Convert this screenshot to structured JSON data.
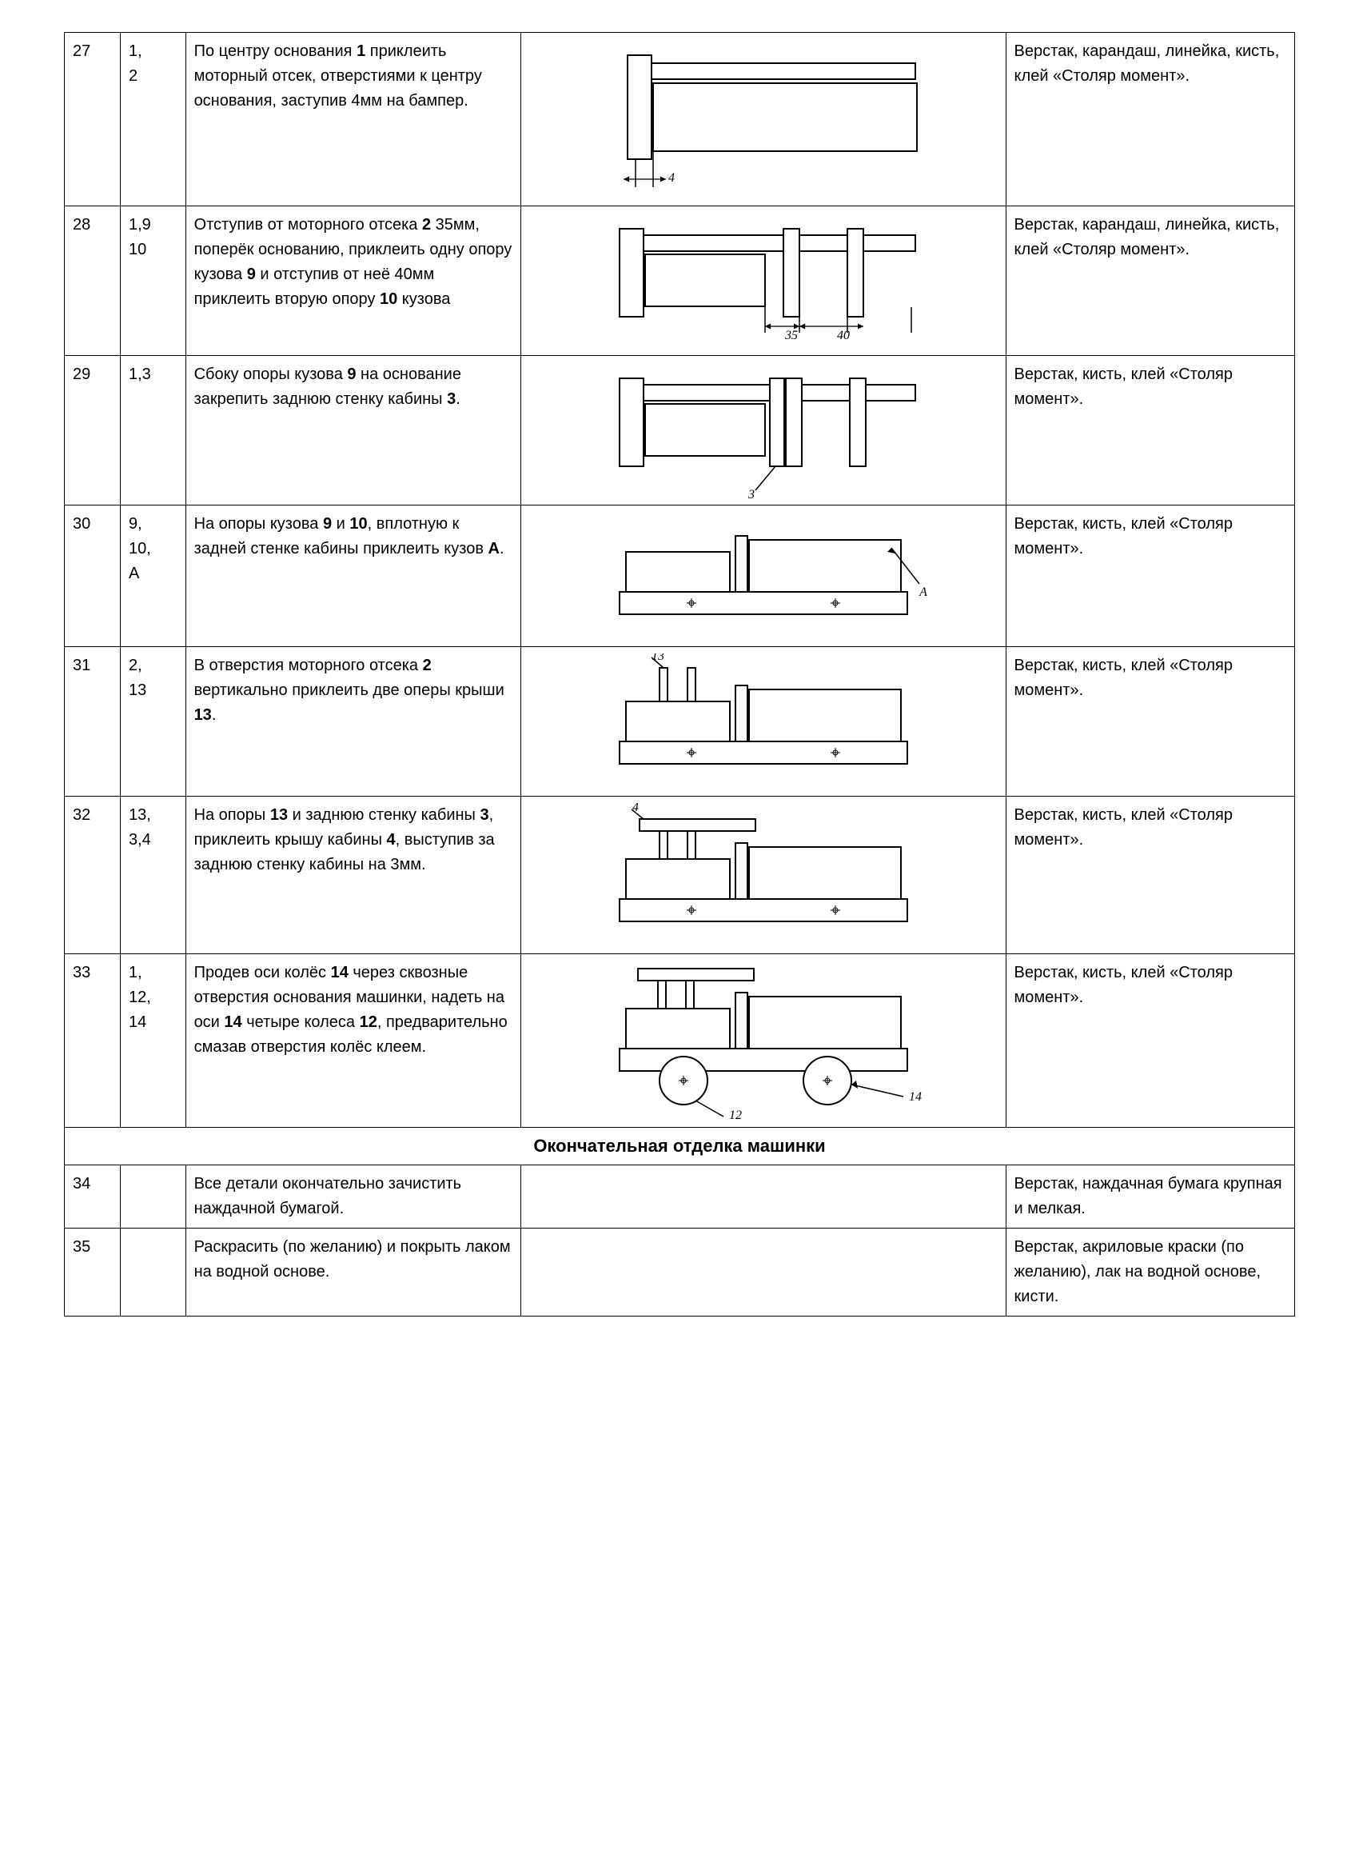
{
  "rows": [
    {
      "num": "27",
      "parts": "1, 2",
      "instr": "По центру основания <b>1</b> приклеить моторный отсек, отверстиями к центру основания, заступив 4мм на бампер.",
      "tools": "Верстак, карандаш, линейка, кисть, клей «Столяр момент».",
      "diagram": "d27"
    },
    {
      "num": "28",
      "parts": "1,9 10",
      "instr": "Отступив от моторного отсека <b>2</b> 35мм, поперёк основанию, приклеить одну опору кузова <b>9</b> и отступив от неё 40мм приклеить вторую опору <b>10</b> кузова",
      "tools": "Верстак, карандаш, линейка, кисть, клей «Столяр момент».",
      "diagram": "d28"
    },
    {
      "num": "29",
      "parts": "1,3",
      "instr": "Сбоку опоры кузова <b>9</b> на основание закрепить заднюю стенку кабины <b>3</b>.",
      "tools": "Верстак, кисть, клей «Столяр момент».",
      "diagram": "d29"
    },
    {
      "num": "30",
      "parts": "9, 10, А",
      "instr": "На опоры кузова <b>9</b> и <b>10</b>, вплотную к задней стенке кабины приклеить кузов <b>А</b>.",
      "tools": "Верстак, кисть, клей «Столяр момент».",
      "diagram": "d30"
    },
    {
      "num": "31",
      "parts": "2, 13",
      "instr": "В отверстия моторного отсека <b>2</b> вертикально приклеить две оперы крыши <b>13</b>.",
      "tools": "Верстак, кисть, клей «Столяр момент».",
      "diagram": "d31"
    },
    {
      "num": "32",
      "parts": "13, 3,4",
      "instr": "На опоры <b>13</b> и заднюю стенку кабины <b>3</b>, приклеить крышу кабины <b>4</b>, выступив за заднюю стенку кабины на 3мм.",
      "tools": "Верстак, кисть, клей «Столяр момент».",
      "diagram": "d32"
    },
    {
      "num": "33",
      "parts": "1, 12, 14",
      "instr": "Продев оси колёс <b>14</b> через сквозные отверстия основания машинки, надеть на оси <b>14</b> четыре колеса <b>12</b>, предварительно смазав отверстия колёс клеем.",
      "tools": "Верстак, кисть, клей «Столяр момент».",
      "diagram": "d33"
    }
  ],
  "section_header": "Окончательная отделка машинки",
  "final_rows": [
    {
      "num": "34",
      "parts": "",
      "instr": "Все детали  окончательно зачистить наждачной бумагой.",
      "tools": "Верстак, наждачная бумага крупная и мелкая."
    },
    {
      "num": "35",
      "parts": "",
      "instr": "Раскрасить (по желанию) и покрыть лаком на водной основе.",
      "tools": "Верстак, акриловые краски (по желанию), лак  на водной основе, кисти."
    }
  ],
  "diagrams": {
    "stroke": "#000000",
    "stroke_width": 2,
    "fill": "#ffffff",
    "dim_labels": {
      "d27": "4",
      "d28a": "35",
      "d28b": "40",
      "d29": "3",
      "d30": "А",
      "d31": "13",
      "d32": "4",
      "d33a": "12",
      "d33b": "14"
    }
  }
}
